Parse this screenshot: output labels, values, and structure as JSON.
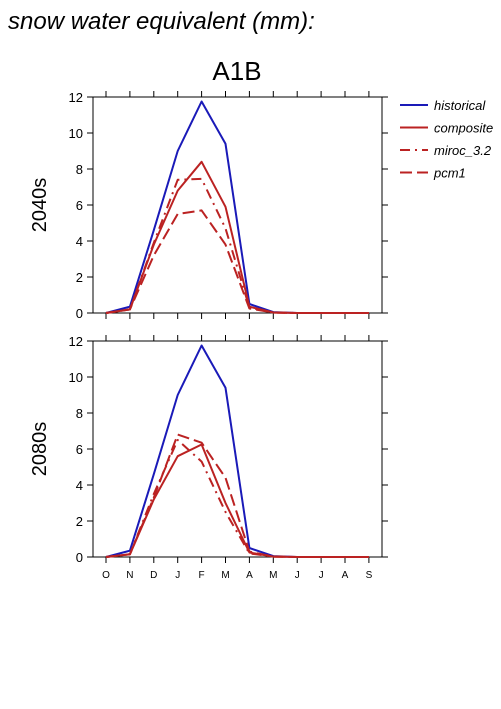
{
  "figure": {
    "heading": "snow water equivalent (mm):",
    "scenario": "A1B"
  },
  "colors": {
    "historical": "#1a1ab8",
    "scenario": "#bb2222",
    "axis": "#000000"
  },
  "chart_data": [
    {
      "type": "line",
      "panel_label": "2040s",
      "x": [
        "O",
        "N",
        "D",
        "J",
        "F",
        "M",
        "A",
        "M",
        "J",
        "J",
        "A",
        "S"
      ],
      "ylim": [
        0,
        12
      ],
      "yticks": [
        0,
        2,
        4,
        6,
        8,
        10,
        12
      ],
      "legend_position": "right",
      "series": [
        {
          "name": "historical",
          "style": "solid",
          "color": "historical",
          "values": [
            0.0,
            0.35,
            4.6,
            9.0,
            11.75,
            9.4,
            0.5,
            0.05,
            0.0,
            0.0,
            0.0,
            0.0
          ]
        },
        {
          "name": "composite",
          "style": "solid",
          "color": "scenario",
          "values": [
            0.0,
            0.2,
            3.8,
            6.8,
            8.4,
            5.9,
            0.35,
            0.03,
            0.0,
            0.0,
            0.0,
            0.0
          ]
        },
        {
          "name": "miroc_3.2",
          "style": "dashdot",
          "color": "scenario",
          "values": [
            0.0,
            0.2,
            3.9,
            7.4,
            7.45,
            4.7,
            0.3,
            0.02,
            0.0,
            0.0,
            0.0,
            0.0
          ]
        },
        {
          "name": "pcm1",
          "style": "dashed",
          "color": "scenario",
          "values": [
            0.0,
            0.2,
            3.2,
            5.5,
            5.7,
            3.8,
            0.25,
            0.02,
            0.0,
            0.0,
            0.0,
            0.0
          ]
        }
      ]
    },
    {
      "type": "line",
      "panel_label": "2080s",
      "x": [
        "O",
        "N",
        "D",
        "J",
        "F",
        "M",
        "A",
        "M",
        "J",
        "J",
        "A",
        "S"
      ],
      "ylim": [
        0,
        12
      ],
      "yticks": [
        0,
        2,
        4,
        6,
        8,
        10,
        12
      ],
      "series": [
        {
          "name": "historical",
          "style": "solid",
          "color": "historical",
          "values": [
            0.0,
            0.35,
            4.6,
            9.0,
            11.75,
            9.4,
            0.5,
            0.05,
            0.0,
            0.0,
            0.0,
            0.0
          ]
        },
        {
          "name": "composite",
          "style": "solid",
          "color": "scenario",
          "values": [
            0.0,
            0.15,
            3.2,
            5.6,
            6.25,
            3.0,
            0.25,
            0.02,
            0.0,
            0.0,
            0.0,
            0.0
          ]
        },
        {
          "name": "miroc_3.2",
          "style": "dashdot",
          "color": "scenario",
          "values": [
            0.0,
            0.15,
            3.5,
            6.5,
            5.3,
            2.5,
            0.2,
            0.02,
            0.0,
            0.0,
            0.0,
            0.0
          ]
        },
        {
          "name": "pcm1",
          "style": "dashed",
          "color": "scenario",
          "values": [
            0.0,
            0.15,
            3.3,
            6.8,
            6.35,
            4.4,
            0.3,
            0.02,
            0.0,
            0.0,
            0.0,
            0.0
          ]
        }
      ]
    }
  ]
}
